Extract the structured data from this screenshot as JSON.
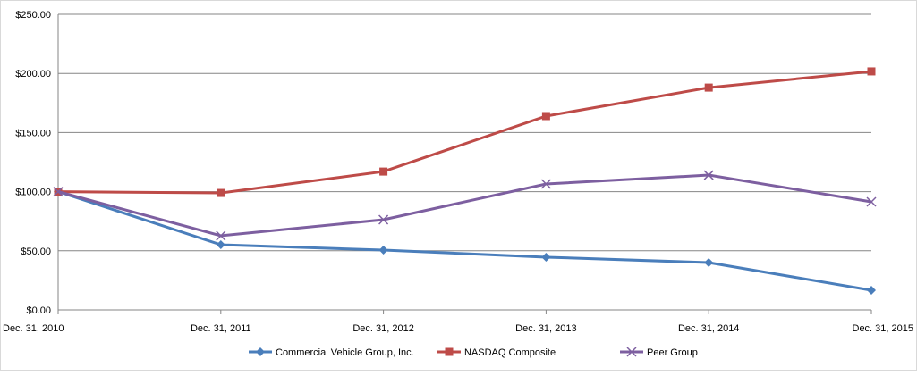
{
  "chart_data": {
    "type": "line",
    "title": "",
    "xlabel": "",
    "ylabel": "",
    "categories": [
      "Dec. 31, 2010",
      "Dec. 31, 2011",
      "Dec. 31, 2012",
      "Dec. 31, 2013",
      "Dec. 31, 2014",
      "Dec. 31, 2015"
    ],
    "ylim": [
      0,
      250
    ],
    "yticks": [
      0,
      50,
      100,
      150,
      200,
      250
    ],
    "ytick_labels": [
      "$0.00",
      "$50.00",
      "$100.00",
      "$150.00",
      "$200.00",
      "$250.00"
    ],
    "grid": true,
    "legend_position": "bottom",
    "series": [
      {
        "name": "Commercial Vehicle Group, Inc.",
        "color": "#4a7ebb",
        "marker": "diamond",
        "values": [
          100,
          55.1,
          50.6,
          44.6,
          40.0,
          16.6
        ]
      },
      {
        "name": "NASDAQ Composite",
        "color": "#be4b48",
        "marker": "square",
        "values": [
          100,
          98.9,
          117.0,
          163.9,
          188.0,
          201.7
        ]
      },
      {
        "name": "Peer Group",
        "color": "#7d5fa0",
        "marker": "x",
        "values": [
          100,
          62.7,
          76.3,
          106.5,
          114.0,
          91.4
        ]
      }
    ]
  }
}
